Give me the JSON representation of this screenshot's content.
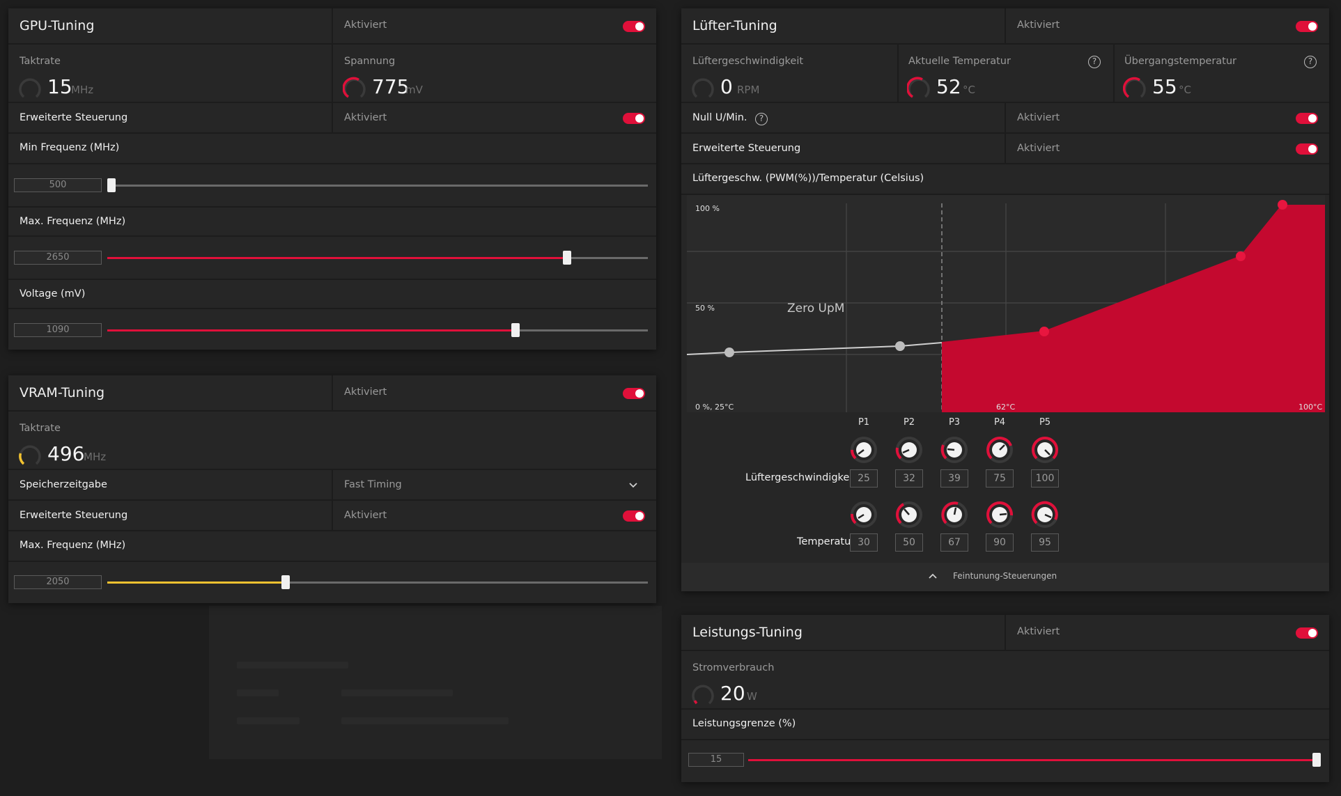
{
  "colors": {
    "accent": "#e0103a",
    "vram_accent": "#f2c230",
    "track": "#6a6a6a",
    "panel": "#262626"
  },
  "gpu_tuning": {
    "title": "GPU-Tuning",
    "status": "Aktiviert",
    "clock": {
      "label": "Taktrate",
      "value": "15",
      "unit": "MHz"
    },
    "voltage": {
      "label": "Spannung",
      "value": "775",
      "unit": "mV"
    },
    "advanced": {
      "label": "Erweiterte Steuerung",
      "status": "Aktiviert"
    },
    "min_freq": {
      "label": "Min Frequenz (MHz)",
      "value": "500",
      "fraction": 0.0
    },
    "max_freq": {
      "label": "Max. Frequenz (MHz)",
      "value": "2650",
      "fraction": 0.85
    },
    "voltage_slider": {
      "label": "Voltage (mV)",
      "value": "1090",
      "fraction": 0.755
    }
  },
  "vram_tuning": {
    "title": "VRAM-Tuning",
    "status": "Aktiviert",
    "clock": {
      "label": "Taktrate",
      "value": "496",
      "unit": "MHz"
    },
    "memory_timing": {
      "label": "Speicherzeitgabe",
      "value": "Fast Timing"
    },
    "advanced": {
      "label": "Erweiterte Steuerung",
      "status": "Aktiviert"
    },
    "max_freq": {
      "label": "Max. Frequenz (MHz)",
      "value": "2050",
      "fraction": 0.33
    }
  },
  "fan_tuning": {
    "title": "Lüfter-Tuning",
    "status": "Aktiviert",
    "fan_speed": {
      "label": "Lüftergeschwindigkeit",
      "value": "0",
      "unit": "RPM"
    },
    "current_temp": {
      "label": "Aktuelle Temperatur",
      "value": "52",
      "unit": "°C"
    },
    "junction_temp": {
      "label": "Übergangstemperatur",
      "value": "55",
      "unit": "°C"
    },
    "zero_rpm": {
      "label": "Null U/Min.",
      "status": "Aktiviert"
    },
    "advanced": {
      "label": "Erweiterte Steuerung",
      "status": "Aktiviert"
    },
    "curve_title": "Lüftergeschw. (PWM(%))/Temperatur (Celsius)",
    "curve_labels": {
      "y_top": "100 %",
      "y_mid": "50 %",
      "origin": "0 %, 25°C",
      "x_mid": "62°C",
      "x_max": "100°C",
      "zero_rpm_zone": "Zero UpM"
    },
    "points_header": [
      "P1",
      "P2",
      "P3",
      "P4",
      "P5"
    ],
    "speed_row_label": "Lüftergeschwindigkeit",
    "temp_row_label": "Temperatur",
    "speeds": [
      "25",
      "32",
      "39",
      "75",
      "100"
    ],
    "temps": [
      "30",
      "50",
      "67",
      "90",
      "95"
    ],
    "fine_tune": "Feintunung-Steuerungen"
  },
  "power_tuning": {
    "title": "Leistungs-Tuning",
    "status": "Aktiviert",
    "power": {
      "label": "Stromverbrauch",
      "value": "20",
      "unit": "W"
    },
    "limit": {
      "label": "Leistungsgrenze (%)",
      "value": "15",
      "fraction": 1.0
    }
  }
}
